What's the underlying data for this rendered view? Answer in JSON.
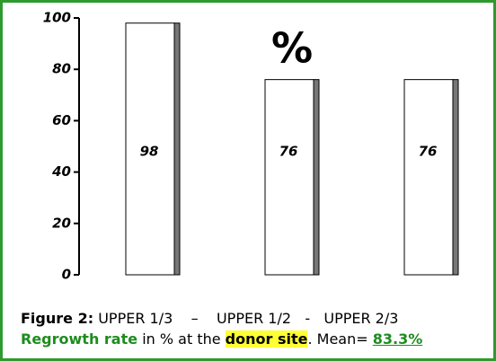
{
  "chart_data": {
    "type": "bar",
    "annotation": "%",
    "categories": [
      null,
      null,
      null
    ],
    "values": [
      98,
      76,
      76
    ],
    "color": "#ffffff",
    "side_color": "#777777",
    "ylim": [
      0,
      100
    ],
    "yticks": [
      0,
      20,
      40,
      60,
      80,
      100
    ],
    "grid": false
  },
  "caption": {
    "label": "Figure 2:",
    "groups": [
      "UPPER 1/3",
      "–",
      "UPPER 1/2",
      "-",
      "UPPER 2/3"
    ],
    "line2": [
      "Regrowth rate",
      "in % at the",
      "donor site",
      ". Mean=",
      "83.3%"
    ]
  }
}
